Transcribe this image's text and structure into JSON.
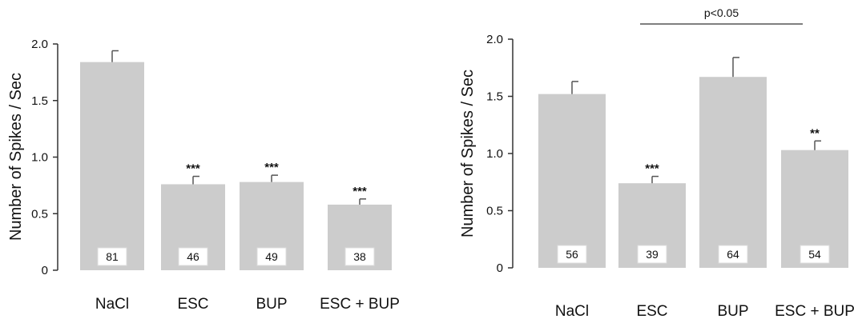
{
  "chart_data": [
    {
      "type": "bar",
      "ylabel": "Number of Spikes / Sec",
      "ylim": [
        0,
        2.0
      ],
      "yticks": [
        "0",
        "0.5",
        "1.0",
        "1.5",
        "2.0"
      ],
      "categories": [
        "NaCl",
        "ESC",
        "BUP",
        "ESC + BUP"
      ],
      "values": [
        1.84,
        0.76,
        0.78,
        0.58
      ],
      "errors": [
        0.1,
        0.07,
        0.06,
        0.05
      ],
      "significance": [
        "",
        "***",
        "***",
        "***"
      ],
      "n_labels": [
        "81",
        "46",
        "49",
        "38"
      ],
      "bar_color": "#cccccc",
      "grid": false
    },
    {
      "type": "bar",
      "ylabel": "Number of Spikes / Sec",
      "ylim": [
        0,
        2.0
      ],
      "yticks": [
        "0",
        "0.5",
        "1.0",
        "1.5",
        "2.0"
      ],
      "categories": [
        "NaCl",
        "ESC",
        "BUP",
        "ESC + BUP"
      ],
      "values": [
        1.52,
        0.74,
        1.67,
        1.03
      ],
      "errors": [
        0.11,
        0.06,
        0.17,
        0.08
      ],
      "significance": [
        "",
        "***",
        "",
        "**"
      ],
      "n_labels": [
        "56",
        "39",
        "64",
        "54"
      ],
      "comparison": {
        "label": "p<0.05",
        "from": "ESC",
        "to": "ESC + BUP"
      },
      "bar_color": "#cccccc",
      "grid": false
    }
  ]
}
